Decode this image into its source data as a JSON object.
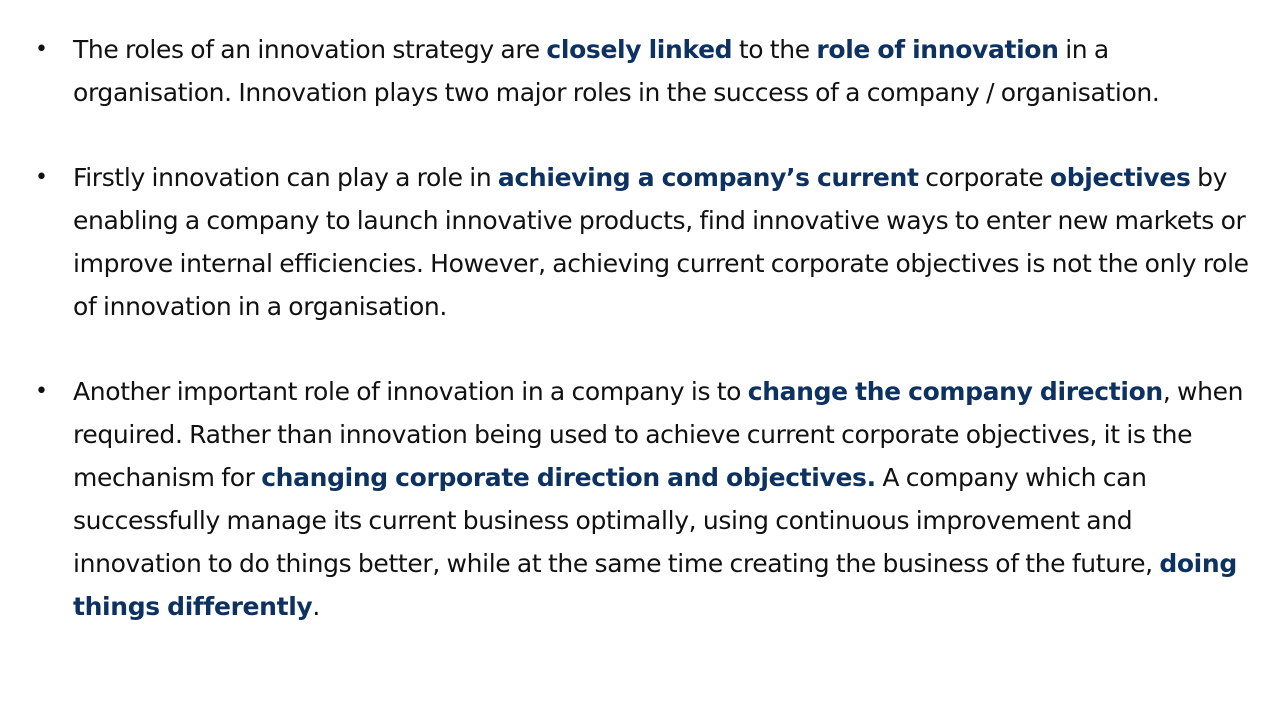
{
  "bullets": [
    {
      "segments": [
        {
          "text": "The roles of an innovation strategy are ",
          "bold": false
        },
        {
          "text": "closely linked",
          "bold": true
        },
        {
          "text": " to the ",
          "bold": false
        },
        {
          "text": "role of innovation",
          "bold": true
        },
        {
          "text": " in a organisation. Innovation plays two major roles in the success of a company / organisation.",
          "bold": false
        }
      ]
    },
    {
      "segments": [
        {
          "text": "Firstly innovation can play a role in ",
          "bold": false
        },
        {
          "text": "achieving a company’s current",
          "bold": true
        },
        {
          "text": " corporate ",
          "bold": false
        },
        {
          "text": "objectives",
          "bold": true
        },
        {
          "text": " by enabling a company to launch innovative products, find innovative ways to enter new markets or improve internal efficiencies. However, achieving current corporate objectives is not the only role of innovation in a organisation.",
          "bold": false
        }
      ]
    },
    {
      "segments": [
        {
          "text": "Another important role of innovation in a company is to ",
          "bold": false
        },
        {
          "text": "change the company direction",
          "bold": true
        },
        {
          "text": ", when required. Rather than innovation being used to achieve current corporate objectives, it is the mechanism for ",
          "bold": false
        },
        {
          "text": "changing corporate direction and objectives.",
          "bold": true
        },
        {
          "text": " A company which can successfully manage its current business optimally, using continuous improvement and innovation to do things better, while at the same time creating the business of the future, ",
          "bold": false
        },
        {
          "text": "doing things differently",
          "bold": true
        },
        {
          "text": ".",
          "bold": false
        }
      ]
    }
  ],
  "bullet_symbol": "•",
  "colors": {
    "text": "#111111",
    "emphasis": "#0d3261",
    "background": "#ffffff"
  }
}
